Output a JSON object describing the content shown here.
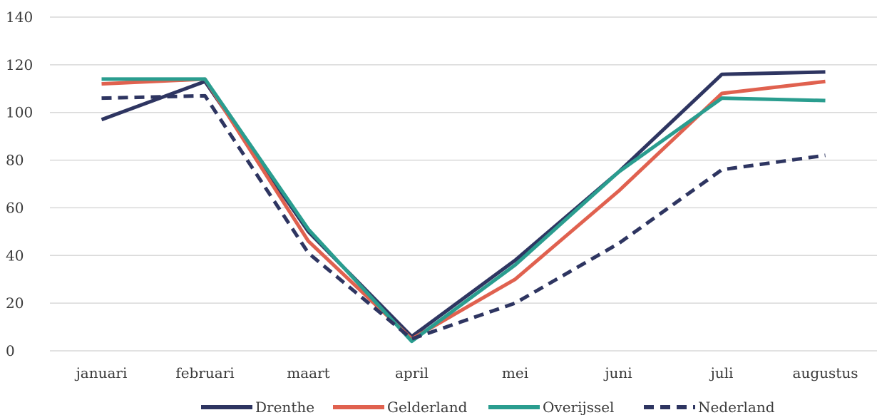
{
  "chart_data": {
    "type": "line",
    "title": "",
    "xlabel": "",
    "ylabel": "",
    "categories": [
      "januari",
      "februari",
      "maart",
      "april",
      "mei",
      "juni",
      "juli",
      "augustus"
    ],
    "ylim": [
      0,
      140
    ],
    "yticks": [
      0,
      20,
      40,
      60,
      80,
      100,
      120,
      140
    ],
    "grid": true,
    "legend_position": "bottom",
    "series": [
      {
        "name": "Drenthe",
        "color": "#2e3561",
        "dashed": false,
        "values": [
          97,
          113,
          50,
          6,
          38,
          75,
          116,
          117
        ]
      },
      {
        "name": "Gelderland",
        "color": "#e0614f",
        "dashed": false,
        "values": [
          112,
          114,
          46,
          5,
          30,
          67,
          108,
          113
        ]
      },
      {
        "name": "Overijssel",
        "color": "#2a9d8f",
        "dashed": false,
        "values": [
          114,
          114,
          51,
          4,
          36,
          75,
          106,
          105
        ]
      },
      {
        "name": "Nederland",
        "color": "#2e3561",
        "dashed": true,
        "values": [
          106,
          107,
          41,
          5,
          20,
          45,
          76,
          82
        ]
      }
    ]
  }
}
